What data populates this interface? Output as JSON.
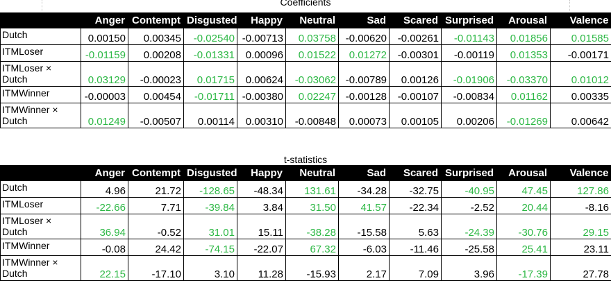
{
  "columns": [
    "Anger",
    "Contempt",
    "Disgusted",
    "Happy",
    "Neutral",
    "Sad",
    "Scared",
    "Surprised",
    "Arousal",
    "Valence"
  ],
  "colors": {
    "positive": "#2db845",
    "negative": "#000000",
    "header_bg": "#000000",
    "header_text": "#ffffff"
  },
  "coefficients": {
    "title": "Coefficients",
    "rows": [
      {
        "label": "Dutch",
        "values": [
          "0.00150",
          "0.00345",
          "-0.02540",
          "-0.00713",
          "0.03758",
          "-0.00620",
          "-0.00261",
          "-0.01143",
          "0.01856",
          "0.01585"
        ],
        "green": [
          false,
          false,
          true,
          false,
          true,
          false,
          false,
          true,
          true,
          true
        ]
      },
      {
        "label": "ITMLoser",
        "values": [
          "-0.01159",
          "0.00208",
          "-0.01331",
          "0.00096",
          "0.01522",
          "0.01272",
          "-0.00301",
          "-0.00119",
          "0.01353",
          "-0.00171"
        ],
        "green": [
          true,
          false,
          true,
          false,
          true,
          true,
          false,
          false,
          true,
          false
        ]
      },
      {
        "label": "ITMLoser × Dutch",
        "values": [
          "0.03129",
          "-0.00023",
          "0.01715",
          "0.00624",
          "-0.03062",
          "-0.00789",
          "0.00126",
          "-0.01906",
          "-0.03370",
          "0.01012"
        ],
        "green": [
          true,
          false,
          true,
          false,
          true,
          false,
          false,
          true,
          true,
          true
        ]
      },
      {
        "label": "ITMWinner",
        "values": [
          "-0.00003",
          "0.00454",
          "-0.01711",
          "-0.00380",
          "0.02247",
          "-0.00128",
          "-0.00107",
          "-0.00834",
          "0.01162",
          "0.00335"
        ],
        "green": [
          false,
          false,
          true,
          false,
          true,
          false,
          false,
          false,
          true,
          false
        ]
      },
      {
        "label": "ITMWinner × Dutch",
        "values": [
          "0.01249",
          "-0.00507",
          "0.00114",
          "0.00310",
          "-0.00848",
          "0.00073",
          "0.00105",
          "0.00206",
          "-0.01269",
          "0.00642"
        ],
        "green": [
          true,
          false,
          false,
          false,
          false,
          false,
          false,
          false,
          true,
          false
        ]
      }
    ]
  },
  "tstats": {
    "title": "t-statistics",
    "rows": [
      {
        "label": "Dutch",
        "values": [
          "4.96",
          "21.72",
          "-128.65",
          "-48.34",
          "131.61",
          "-34.28",
          "-32.75",
          "-40.95",
          "47.45",
          "127.86"
        ],
        "green": [
          false,
          false,
          true,
          false,
          true,
          false,
          false,
          true,
          true,
          true
        ]
      },
      {
        "label": "ITMLoser",
        "values": [
          "-22.66",
          "7.71",
          "-39.84",
          "3.84",
          "31.50",
          "41.57",
          "-22.34",
          "-2.52",
          "20.44",
          "-8.16"
        ],
        "green": [
          true,
          false,
          true,
          false,
          true,
          true,
          false,
          false,
          true,
          false
        ]
      },
      {
        "label": "ITMLoser × Dutch",
        "values": [
          "36.94",
          "-0.52",
          "31.01",
          "15.11",
          "-38.28",
          "-15.58",
          "5.63",
          "-24.39",
          "-30.76",
          "29.15"
        ],
        "green": [
          true,
          false,
          true,
          false,
          true,
          false,
          false,
          true,
          true,
          true
        ]
      },
      {
        "label": "ITMWinner",
        "values": [
          "-0.08",
          "24.42",
          "-74.15",
          "-22.07",
          "67.32",
          "-6.03",
          "-11.46",
          "-25.58",
          "25.41",
          "23.11"
        ],
        "green": [
          false,
          false,
          true,
          false,
          true,
          false,
          false,
          false,
          true,
          false
        ]
      },
      {
        "label": "ITMWinner × Dutch",
        "values": [
          "22.15",
          "-17.10",
          "3.10",
          "11.28",
          "-15.93",
          "2.17",
          "7.09",
          "3.96",
          "-17.39",
          "27.78"
        ],
        "green": [
          true,
          false,
          false,
          false,
          false,
          false,
          false,
          false,
          true,
          false
        ]
      }
    ]
  }
}
